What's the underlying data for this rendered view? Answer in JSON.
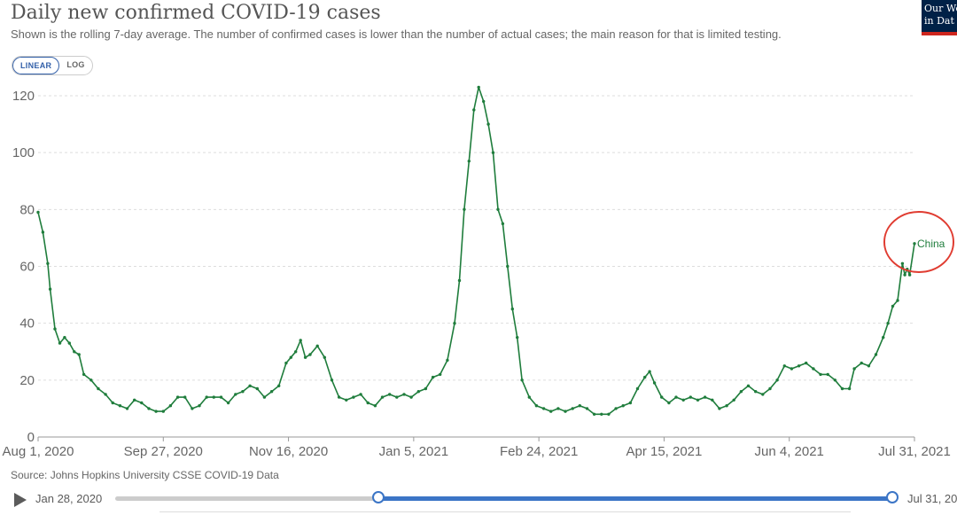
{
  "header": {
    "title": "Daily new confirmed COVID-19 cases",
    "subtitle": "Shown is the rolling 7-day average. The number of confirmed cases is lower than the number of actual cases; the main reason for that is limited testing.",
    "logo_line1": "Our Wo",
    "logo_line2": "in Dat"
  },
  "toggle": {
    "linear": "LINEAR",
    "log": "LOG",
    "selected": "LINEAR"
  },
  "source": "Source: Johns Hopkins University CSSE COVID-19 Data",
  "timeline": {
    "start_label": "Jan 28, 2020",
    "end_label": "Jul 31, 20"
  },
  "colors": {
    "series": "#1f7d3c",
    "annotation": "#e03c31",
    "grid": "#dddddd",
    "slider": "#3b75c6"
  },
  "chart_data": {
    "type": "line",
    "title": "Daily new confirmed COVID-19 cases",
    "ylim": [
      0,
      120
    ],
    "yticks": [
      0,
      20,
      40,
      60,
      80,
      100,
      120
    ],
    "grid": true,
    "xticks": [
      "Aug 1, 2020",
      "Sep 27, 2020",
      "Nov 16, 2020",
      "Jan 5, 2021",
      "Feb 24, 2021",
      "Apr 15, 2021",
      "Jun 4, 2021",
      "Jul 31, 2021"
    ],
    "x_start": "2020-08-01",
    "x_end": "2021-07-31",
    "series": [
      {
        "name": "China",
        "points": [
          [
            "2020-08-01",
            79
          ],
          [
            "2020-08-03",
            72
          ],
          [
            "2020-08-05",
            61
          ],
          [
            "2020-08-06",
            52
          ],
          [
            "2020-08-08",
            38
          ],
          [
            "2020-08-10",
            33
          ],
          [
            "2020-08-12",
            35
          ],
          [
            "2020-08-14",
            33
          ],
          [
            "2020-08-16",
            30
          ],
          [
            "2020-08-18",
            29
          ],
          [
            "2020-08-20",
            22
          ],
          [
            "2020-08-23",
            20
          ],
          [
            "2020-08-26",
            17
          ],
          [
            "2020-08-29",
            15
          ],
          [
            "2020-09-01",
            12
          ],
          [
            "2020-09-04",
            11
          ],
          [
            "2020-09-07",
            10
          ],
          [
            "2020-09-10",
            13
          ],
          [
            "2020-09-13",
            12
          ],
          [
            "2020-09-16",
            10
          ],
          [
            "2020-09-19",
            9
          ],
          [
            "2020-09-22",
            9
          ],
          [
            "2020-09-25",
            11
          ],
          [
            "2020-09-28",
            14
          ],
          [
            "2020-10-01",
            14
          ],
          [
            "2020-10-04",
            10
          ],
          [
            "2020-10-07",
            11
          ],
          [
            "2020-10-10",
            14
          ],
          [
            "2020-10-13",
            14
          ],
          [
            "2020-10-16",
            14
          ],
          [
            "2020-10-19",
            12
          ],
          [
            "2020-10-22",
            15
          ],
          [
            "2020-10-25",
            16
          ],
          [
            "2020-10-28",
            18
          ],
          [
            "2020-10-31",
            17
          ],
          [
            "2020-11-03",
            14
          ],
          [
            "2020-11-06",
            16
          ],
          [
            "2020-11-09",
            18
          ],
          [
            "2020-11-12",
            26
          ],
          [
            "2020-11-14",
            28
          ],
          [
            "2020-11-16",
            30
          ],
          [
            "2020-11-18",
            34
          ],
          [
            "2020-11-20",
            28
          ],
          [
            "2020-11-22",
            29
          ],
          [
            "2020-11-25",
            32
          ],
          [
            "2020-11-28",
            28
          ],
          [
            "2020-12-01",
            20
          ],
          [
            "2020-12-04",
            14
          ],
          [
            "2020-12-07",
            13
          ],
          [
            "2020-12-10",
            14
          ],
          [
            "2020-12-13",
            15
          ],
          [
            "2020-12-16",
            12
          ],
          [
            "2020-12-19",
            11
          ],
          [
            "2020-12-22",
            14
          ],
          [
            "2020-12-25",
            15
          ],
          [
            "2020-12-28",
            14
          ],
          [
            "2020-12-31",
            15
          ],
          [
            "2021-01-03",
            14
          ],
          [
            "2021-01-06",
            16
          ],
          [
            "2021-01-09",
            17
          ],
          [
            "2021-01-12",
            21
          ],
          [
            "2021-01-15",
            22
          ],
          [
            "2021-01-18",
            27
          ],
          [
            "2021-01-21",
            40
          ],
          [
            "2021-01-23",
            55
          ],
          [
            "2021-01-25",
            80
          ],
          [
            "2021-01-27",
            97
          ],
          [
            "2021-01-29",
            115
          ],
          [
            "2021-01-31",
            123
          ],
          [
            "2021-02-02",
            118
          ],
          [
            "2021-02-04",
            110
          ],
          [
            "2021-02-06",
            100
          ],
          [
            "2021-02-08",
            80
          ],
          [
            "2021-02-10",
            75
          ],
          [
            "2021-02-12",
            60
          ],
          [
            "2021-02-14",
            45
          ],
          [
            "2021-02-16",
            35
          ],
          [
            "2021-02-18",
            20
          ],
          [
            "2021-02-21",
            14
          ],
          [
            "2021-02-24",
            11
          ],
          [
            "2021-02-27",
            10
          ],
          [
            "2021-03-02",
            9
          ],
          [
            "2021-03-05",
            10
          ],
          [
            "2021-03-08",
            9
          ],
          [
            "2021-03-11",
            10
          ],
          [
            "2021-03-14",
            11
          ],
          [
            "2021-03-17",
            10
          ],
          [
            "2021-03-20",
            8
          ],
          [
            "2021-03-23",
            8
          ],
          [
            "2021-03-26",
            8
          ],
          [
            "2021-03-29",
            10
          ],
          [
            "2021-04-01",
            11
          ],
          [
            "2021-04-04",
            12
          ],
          [
            "2021-04-07",
            17
          ],
          [
            "2021-04-10",
            21
          ],
          [
            "2021-04-12",
            23
          ],
          [
            "2021-04-14",
            19
          ],
          [
            "2021-04-17",
            14
          ],
          [
            "2021-04-20",
            12
          ],
          [
            "2021-04-23",
            14
          ],
          [
            "2021-04-26",
            13
          ],
          [
            "2021-04-29",
            14
          ],
          [
            "2021-05-02",
            13
          ],
          [
            "2021-05-05",
            14
          ],
          [
            "2021-05-08",
            13
          ],
          [
            "2021-05-11",
            10
          ],
          [
            "2021-05-14",
            11
          ],
          [
            "2021-05-17",
            13
          ],
          [
            "2021-05-20",
            16
          ],
          [
            "2021-05-23",
            18
          ],
          [
            "2021-05-26",
            16
          ],
          [
            "2021-05-29",
            15
          ],
          [
            "2021-06-01",
            17
          ],
          [
            "2021-06-04",
            20
          ],
          [
            "2021-06-07",
            25
          ],
          [
            "2021-06-10",
            24
          ],
          [
            "2021-06-13",
            25
          ],
          [
            "2021-06-16",
            26
          ],
          [
            "2021-06-19",
            24
          ],
          [
            "2021-06-22",
            22
          ],
          [
            "2021-06-25",
            22
          ],
          [
            "2021-06-28",
            20
          ],
          [
            "2021-07-01",
            17
          ],
          [
            "2021-07-04",
            17
          ],
          [
            "2021-07-06",
            24
          ],
          [
            "2021-07-09",
            26
          ],
          [
            "2021-07-12",
            25
          ],
          [
            "2021-07-15",
            29
          ],
          [
            "2021-07-18",
            35
          ],
          [
            "2021-07-20",
            40
          ],
          [
            "2021-07-22",
            46
          ],
          [
            "2021-07-24",
            48
          ],
          [
            "2021-07-26",
            61
          ],
          [
            "2021-07-27",
            57
          ],
          [
            "2021-07-28",
            59
          ],
          [
            "2021-07-29",
            57
          ],
          [
            "2021-07-31",
            68
          ]
        ]
      }
    ]
  }
}
